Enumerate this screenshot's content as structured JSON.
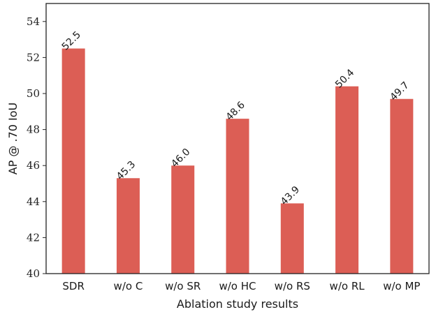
{
  "chart_data": {
    "type": "bar",
    "title": "",
    "xlabel": "Ablation study results",
    "ylabel": "AP @ .70 IoU",
    "categories": [
      "SDR",
      "w/o C",
      "w/o SR",
      "w/o HC",
      "w/o RS",
      "w/o RL",
      "w/o MP"
    ],
    "values": [
      52.5,
      45.3,
      46.0,
      48.6,
      43.9,
      50.4,
      49.7
    ],
    "value_labels": [
      "52.5",
      "45.3",
      "46.0",
      "48.6",
      "43.9",
      "50.4",
      "49.7"
    ],
    "ylim": [
      40,
      55
    ],
    "yticks": [
      40,
      42,
      44,
      46,
      48,
      50,
      52,
      54
    ],
    "grid": false,
    "legend": "none",
    "bar_color": "#dc5e55"
  }
}
